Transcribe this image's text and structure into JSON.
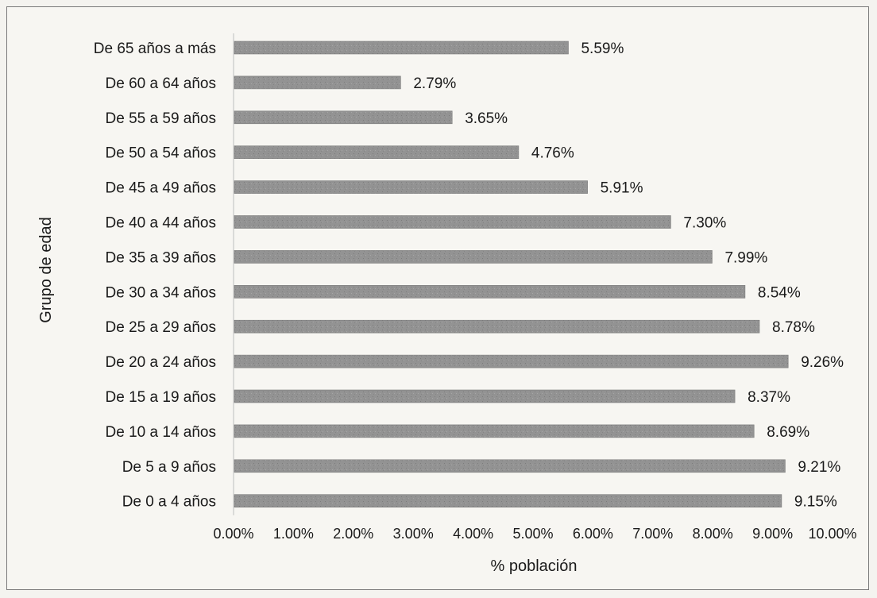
{
  "chart_data": {
    "type": "bar",
    "orientation": "horizontal",
    "categories": [
      "De 65 años a más",
      "De 60 a 64 años",
      "De 55 a 59 años",
      "De 50 a 54 años",
      "De 45 a 49 años",
      "De 40 a 44 años",
      "De 35 a 39 años",
      "De 30 a 34 años",
      "De 25 a 29 años",
      "De 20 a 24 años",
      "De 15 a 19 años",
      "De 10 a 14 años",
      "De 5  a 9 años",
      "De 0  a 4 años"
    ],
    "values": [
      5.59,
      2.79,
      3.65,
      4.76,
      5.91,
      7.3,
      7.99,
      8.54,
      8.78,
      9.26,
      8.37,
      8.69,
      9.21,
      9.15
    ],
    "value_labels": [
      "5.59%",
      "2.79%",
      "3.65%",
      "4.76%",
      "5.91%",
      "7.30%",
      "7.99%",
      "8.54%",
      "8.78%",
      "9.26%",
      "8.37%",
      "8.69%",
      "9.21%",
      "9.15%"
    ],
    "x_ticks": [
      "0.00%",
      "1.00%",
      "2.00%",
      "3.00%",
      "4.00%",
      "5.00%",
      "6.00%",
      "7.00%",
      "8.00%",
      "9.00%",
      "10.00%"
    ],
    "xlim": [
      0,
      10
    ],
    "xlabel": "% población",
    "ylabel": "Grupo de edad",
    "title": "",
    "grid": false,
    "legend": "none",
    "bar_color": "#8f8f8f"
  }
}
